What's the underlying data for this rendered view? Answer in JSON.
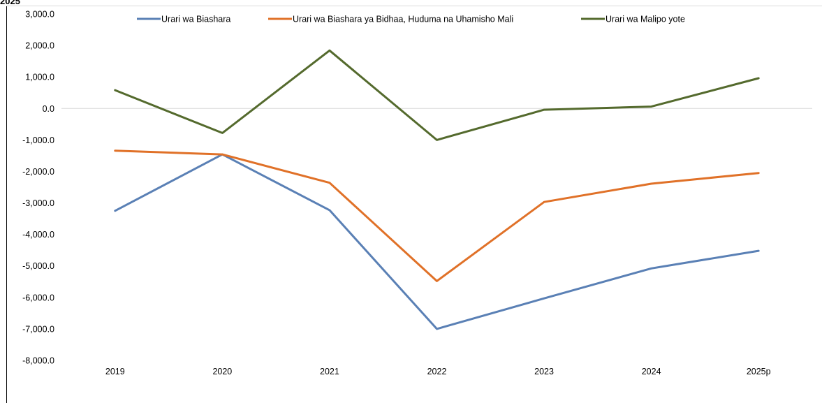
{
  "top_fragment": "2025",
  "chart_data": {
    "type": "line",
    "categories": [
      "2019",
      "2020",
      "2021",
      "2022",
      "2023",
      "2024",
      "2025p"
    ],
    "ylim": [
      -8000,
      3000
    ],
    "y_ticks": [
      "3,000.0",
      "2,000.0",
      "1,000.0",
      "0.0",
      "-1,000.0",
      "-2,000.0",
      "-3,000.0",
      "-4,000.0",
      "-5,000.0",
      "-6,000.0",
      "-7,000.0",
      "-8,000.0"
    ],
    "y_tick_values": [
      3000,
      2000,
      1000,
      0,
      -1000,
      -2000,
      -3000,
      -4000,
      -5000,
      -6000,
      -7000,
      -8000
    ],
    "grid": false,
    "legend_position": "top",
    "series": [
      {
        "name": "Urari wa Biashara",
        "color": "#5a80b5",
        "values": [
          -3250,
          -1460,
          -3230,
          -7000,
          -6030,
          -5080,
          -4520
        ]
      },
      {
        "name": "Urari wa Biashara ya Bidhaa, Huduma na Uhamisho Mali",
        "color": "#e07128",
        "values": [
          -1340,
          -1460,
          -2360,
          -5480,
          -2970,
          -2390,
          -2050
        ]
      },
      {
        "name": "Urari wa Malipo yote",
        "color": "#546a2d",
        "values": [
          580,
          -780,
          1840,
          -1000,
          -40,
          60,
          960
        ]
      }
    ]
  }
}
